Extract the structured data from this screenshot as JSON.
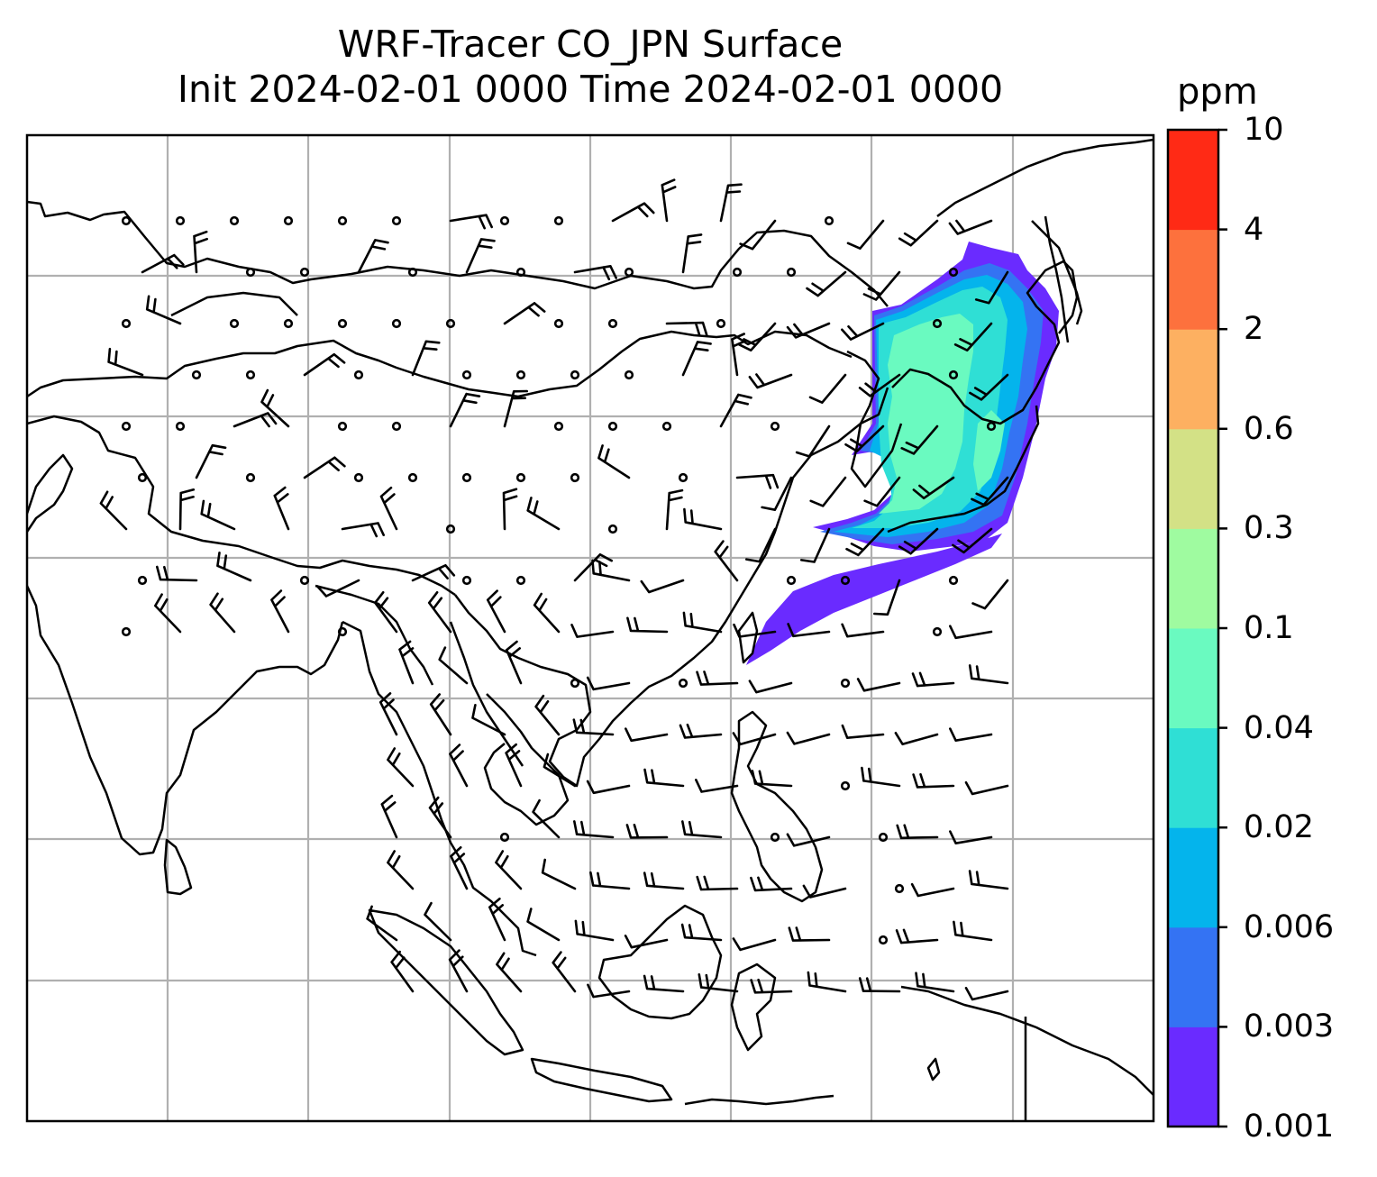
{
  "title": {
    "line1": "WRF-Tracer CO_JPN Surface",
    "line2": "Init 2024-02-01 0000 Time 2024-02-01 0000"
  },
  "colorbar": {
    "unit": "ppm",
    "ticks": [
      "0.001",
      "0.003",
      "0.006",
      "0.02",
      "0.04",
      "0.1",
      "0.3",
      "0.6",
      "2",
      "4",
      "10"
    ],
    "colors": [
      "#6a2bff",
      "#3473f3",
      "#04b4ec",
      "#2fdfd5",
      "#6afac0",
      "#9ffba0",
      "#d3e186",
      "#fdb061",
      "#fd713d",
      "#ff2a15"
    ]
  },
  "map": {
    "gridline_color": "#b0b0b0",
    "coastline_color": "#000000",
    "plume_colors": {
      "c0001": "#6a2bff",
      "c0003": "#3473f3",
      "c0006": "#04b4ec",
      "c002": "#2fdfd5",
      "c004": "#6afac0"
    }
  }
}
